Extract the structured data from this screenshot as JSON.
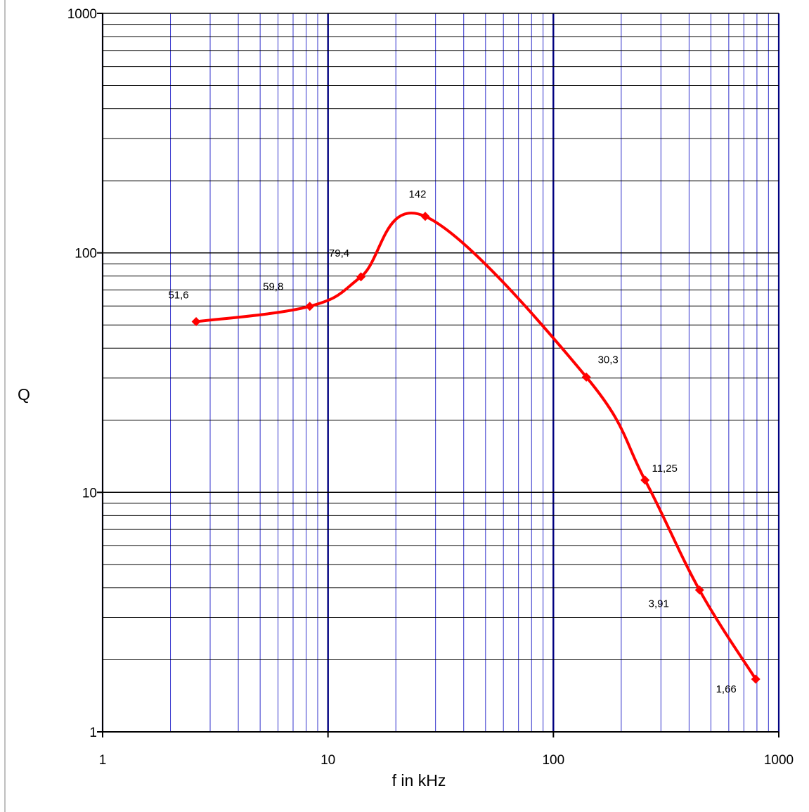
{
  "chart_data": {
    "type": "line",
    "title": "",
    "xlabel": "f in kHz",
    "ylabel": "Q",
    "x_scale": "log",
    "y_scale": "log",
    "xlim": [
      1,
      1000
    ],
    "ylim": [
      1,
      1000
    ],
    "grid": true,
    "legend": "none",
    "x_ticks": [
      "1",
      "10",
      "100",
      "1000"
    ],
    "y_ticks": [
      "1",
      "10",
      "100",
      "1000"
    ],
    "series": [
      {
        "color": "#ff0000",
        "marker": "diamond",
        "smooth": true,
        "x": [
          2.6,
          8.3,
          14,
          27,
          140,
          255,
          445,
          790
        ],
        "y": [
          51.6,
          59.8,
          79.4,
          142,
          30.3,
          11.25,
          3.91,
          1.66
        ],
        "labels": [
          "51,6",
          "59,8",
          "79,4",
          "142",
          "30,3",
          "11,25",
          "3,91",
          "1,66"
        ]
      }
    ],
    "colors": {
      "major_grid": "#000080",
      "minor_grid": "#3333cc",
      "horizontal_grid": "#000000",
      "series": "#ff0000"
    }
  }
}
